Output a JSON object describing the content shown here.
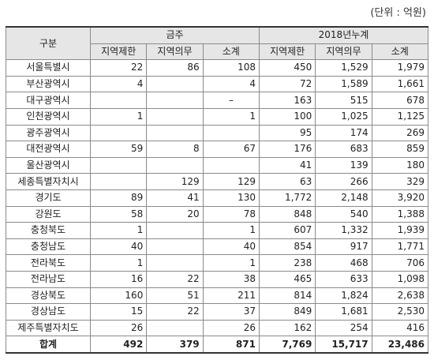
{
  "unit_label": "(단위 : 억원)",
  "header": {
    "category": "구분",
    "group_current": "금주",
    "group_cumulative": "2018년누계",
    "sub": [
      "지역제한",
      "지역의무",
      "소계",
      "지역제한",
      "지역의무",
      "소계"
    ]
  },
  "rows": [
    {
      "region": "서울특별시",
      "cells": [
        "22",
        "86",
        "108",
        "450",
        "1,529",
        "1,979"
      ]
    },
    {
      "region": "부산광역시",
      "cells": [
        "4",
        "",
        "4",
        "72",
        "1,589",
        "1,661"
      ]
    },
    {
      "region": "대구광역시",
      "cells": [
        "",
        "",
        "–",
        "163",
        "515",
        "678"
      ]
    },
    {
      "region": "인천광역시",
      "cells": [
        "1",
        "",
        "1",
        "100",
        "1,025",
        "1,125"
      ]
    },
    {
      "region": "광주광역시",
      "cells": [
        "",
        "",
        "",
        "95",
        "174",
        "269"
      ]
    },
    {
      "region": "대전광역시",
      "cells": [
        "59",
        "8",
        "67",
        "176",
        "683",
        "859"
      ]
    },
    {
      "region": "울산광역시",
      "cells": [
        "",
        "",
        "",
        "41",
        "139",
        "180"
      ]
    },
    {
      "region": "세종특별자치시",
      "cells": [
        "",
        "129",
        "129",
        "63",
        "266",
        "329"
      ]
    },
    {
      "region": "경기도",
      "cells": [
        "89",
        "41",
        "130",
        "1,772",
        "2,148",
        "3,920"
      ]
    },
    {
      "region": "강원도",
      "cells": [
        "58",
        "20",
        "78",
        "848",
        "540",
        "1,388"
      ]
    },
    {
      "region": "충청북도",
      "cells": [
        "1",
        "",
        "1",
        "607",
        "1,332",
        "1,939"
      ]
    },
    {
      "region": "충청남도",
      "cells": [
        "40",
        "",
        "40",
        "854",
        "917",
        "1,771"
      ]
    },
    {
      "region": "전라북도",
      "cells": [
        "1",
        "",
        "1",
        "238",
        "468",
        "706"
      ]
    },
    {
      "region": "전라남도",
      "cells": [
        "16",
        "22",
        "38",
        "465",
        "633",
        "1,098"
      ]
    },
    {
      "region": "경상북도",
      "cells": [
        "160",
        "51",
        "211",
        "814",
        "1,824",
        "2,638"
      ]
    },
    {
      "region": "경상남도",
      "cells": [
        "15",
        "22",
        "37",
        "849",
        "1,681",
        "2,530"
      ]
    },
    {
      "region": "제주특별자치도",
      "cells": [
        "26",
        "",
        "26",
        "162",
        "254",
        "416"
      ]
    }
  ],
  "total": {
    "region": "합계",
    "cells": [
      "492",
      "379",
      "871",
      "7,769",
      "15,717",
      "23,486"
    ]
  }
}
